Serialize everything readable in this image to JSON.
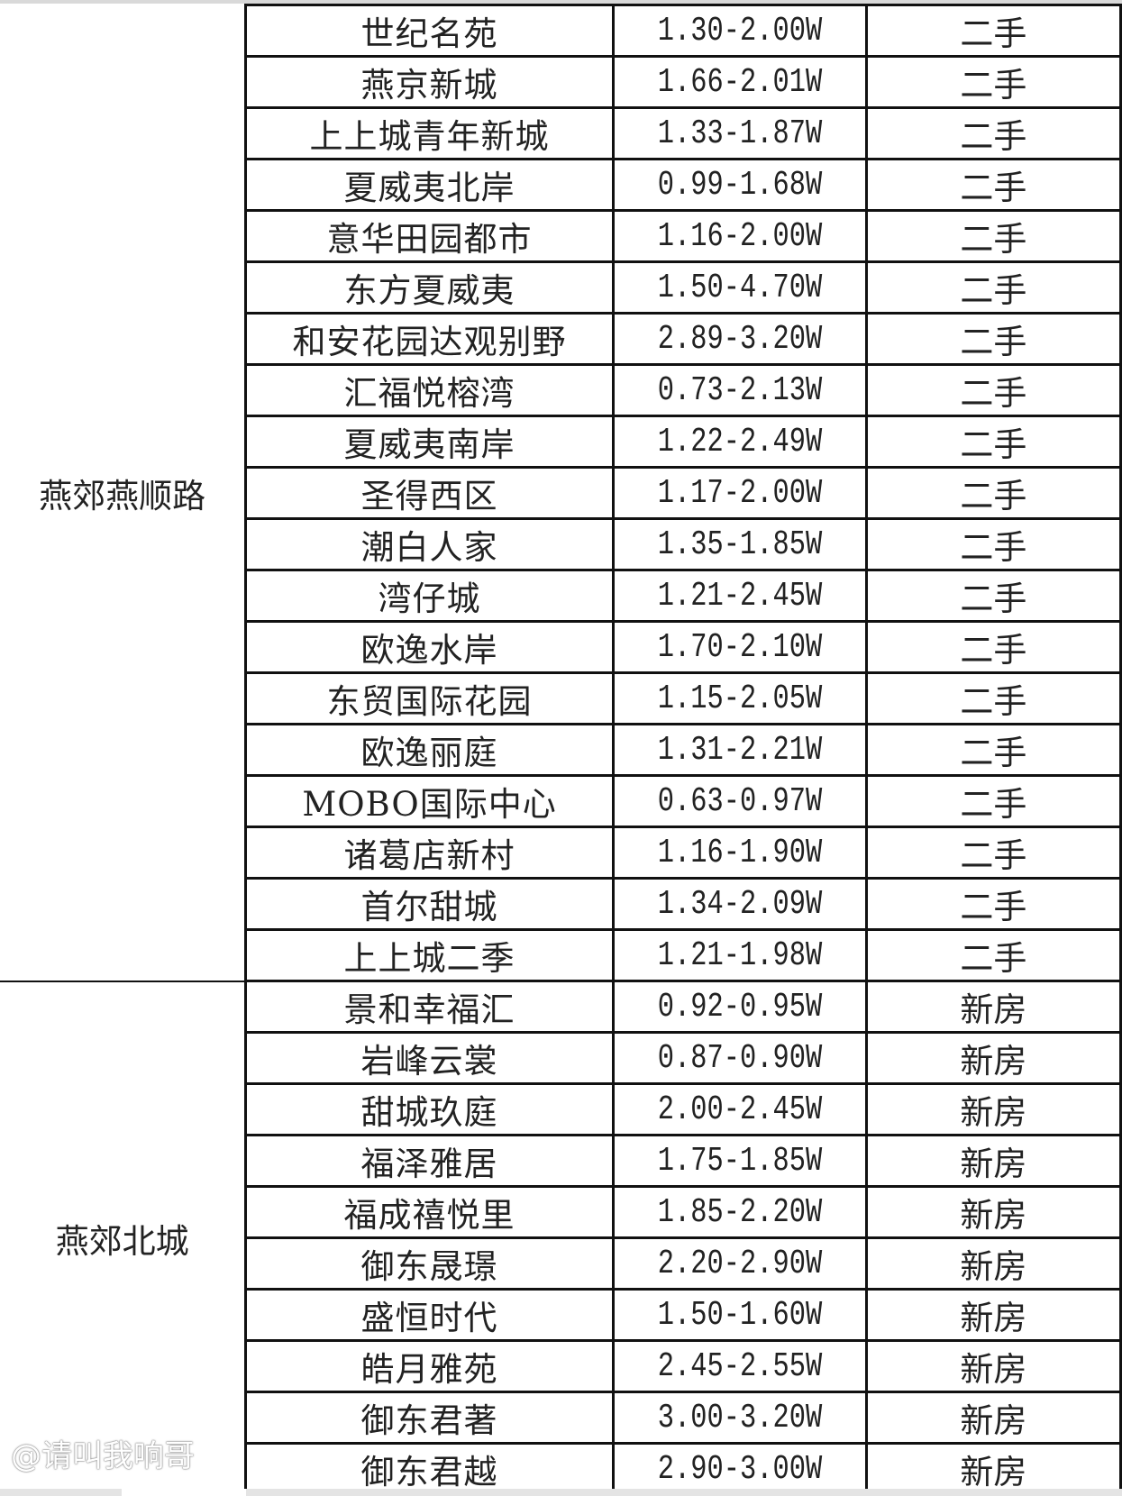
{
  "groups": [
    {
      "area": "燕郊燕顺路",
      "rows": [
        {
          "name": "世纪名苑",
          "price": "1.30-2.00W",
          "type": "二手"
        },
        {
          "name": "燕京新城",
          "price": "1.66-2.01W",
          "type": "二手"
        },
        {
          "name": "上上城青年新城",
          "price": "1.33-1.87W",
          "type": "二手"
        },
        {
          "name": "夏威夷北岸",
          "price": "0.99-1.68W",
          "type": "二手"
        },
        {
          "name": "意华田园都市",
          "price": "1.16-2.00W",
          "type": "二手"
        },
        {
          "name": "东方夏威夷",
          "price": "1.50-4.70W",
          "type": "二手"
        },
        {
          "name": "和安花园达观别野",
          "price": "2.89-3.20W",
          "type": "二手"
        },
        {
          "name": "汇福悦榕湾",
          "price": "0.73-2.13W",
          "type": "二手"
        },
        {
          "name": "夏威夷南岸",
          "price": "1.22-2.49W",
          "type": "二手"
        },
        {
          "name": "圣得西区",
          "price": "1.17-2.00W",
          "type": "二手"
        },
        {
          "name": "潮白人家",
          "price": "1.35-1.85W",
          "type": "二手"
        },
        {
          "name": "湾仔城",
          "price": "1.21-2.45W",
          "type": "二手"
        },
        {
          "name": "欧逸水岸",
          "price": "1.70-2.10W",
          "type": "二手"
        },
        {
          "name": "东贸国际花园",
          "price": "1.15-2.05W",
          "type": "二手"
        },
        {
          "name": "欧逸丽庭",
          "price": "1.31-2.21W",
          "type": "二手"
        },
        {
          "name": "MOBO国际中心",
          "price": "0.63-0.97W",
          "type": "二手"
        },
        {
          "name": "诸葛店新村",
          "price": "1.16-1.90W",
          "type": "二手"
        },
        {
          "name": "首尔甜城",
          "price": "1.34-2.09W",
          "type": "二手"
        },
        {
          "name": "上上城二季",
          "price": "1.21-1.98W",
          "type": "二手"
        }
      ]
    },
    {
      "area": "燕郊北城",
      "rows": [
        {
          "name": "景和幸福汇",
          "price": "0.92-0.95W",
          "type": "新房"
        },
        {
          "name": "岩峰云裳",
          "price": "0.87-0.90W",
          "type": "新房"
        },
        {
          "name": "甜城玖庭",
          "price": "2.00-2.45W",
          "type": "新房"
        },
        {
          "name": "福泽雅居",
          "price": "1.75-1.85W",
          "type": "新房"
        },
        {
          "name": "福成禧悦里",
          "price": "1.85-2.20W",
          "type": "新房"
        },
        {
          "name": "御东晟璟",
          "price": "2.20-2.90W",
          "type": "新房"
        },
        {
          "name": "盛恒时代",
          "price": "1.50-1.60W",
          "type": "新房"
        },
        {
          "name": "皓月雅苑",
          "price": "2.45-2.55W",
          "type": "新房"
        },
        {
          "name": "御东君著",
          "price": "3.00-3.20W",
          "type": "新房"
        },
        {
          "name": "御东君越",
          "price": "2.90-3.00W",
          "type": "新房"
        }
      ]
    }
  ],
  "watermark": "@请叫我响哥"
}
